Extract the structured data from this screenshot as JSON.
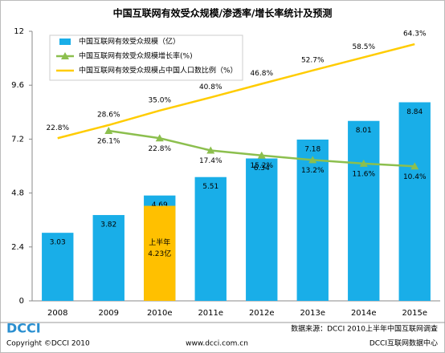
{
  "chart_data": {
    "type": "bar",
    "title": "中国互联网有效受众规模/渗透率/增长率统计及预测",
    "categories": [
      "2008",
      "2009",
      "2010e",
      "2011e",
      "2012e",
      "2013e",
      "2014e",
      "2015e"
    ],
    "ylim": [
      0,
      12
    ],
    "yticks": [
      0,
      2.4,
      4.8,
      7.2,
      9.6,
      12
    ],
    "y2lim": [
      -49,
      70
    ],
    "grid": false,
    "legend": "upper left",
    "series": [
      {
        "name": "中国互联网有效受众规模（亿）",
        "type": "bar",
        "color": "#19aee8",
        "values": [
          3.03,
          3.82,
          4.69,
          5.51,
          6.34,
          7.18,
          8.01,
          8.84
        ]
      },
      {
        "name": "中国互联网有效受众规模增长率(%)",
        "type": "line",
        "axis": "y2",
        "color": "#8cbf4e",
        "marker": "triangle",
        "values": [
          null,
          26.1,
          22.8,
          17.4,
          15.2,
          13.2,
          11.6,
          10.4
        ],
        "value_labels": [
          null,
          "26.1%",
          "22.8%",
          "17.4%",
          "15.2%",
          "13.2%",
          "11.6%",
          "10.4%"
        ]
      },
      {
        "name": "中国互联网有效受众规模占中国人口数比例（%）",
        "type": "line",
        "axis": "y2",
        "color": "#ffcc00",
        "values": [
          22.8,
          28.6,
          35.0,
          40.8,
          46.8,
          52.7,
          58.5,
          64.3
        ],
        "value_labels": [
          "22.8%",
          "28.6%",
          "35.0%",
          "40.8%",
          "46.8%",
          "52.7%",
          "58.5%",
          "64.3%"
        ]
      }
    ],
    "inset_series": {
      "name": "上半年",
      "color": "#ffc000",
      "values": [
        null,
        null,
        4.23,
        null,
        null,
        null,
        null,
        null
      ],
      "value_labels": [
        null,
        null,
        "4.23亿",
        null,
        null,
        null,
        null,
        null
      ]
    }
  },
  "footer": {
    "logo": "DCCI",
    "copyright": "Copyright ©DCCI 2010",
    "website": "www.dcci.com.cn",
    "source": "数据来源：DCCI 2010上半年中国互联网调查",
    "org": "DCCI互联网数据中心"
  }
}
